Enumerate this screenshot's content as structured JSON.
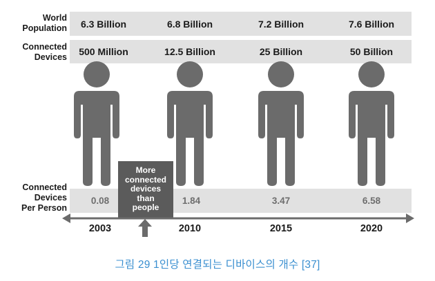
{
  "labels": {
    "world_population": [
      "World",
      "Population"
    ],
    "connected_devices": [
      "Connected",
      "Devices"
    ],
    "per_person": [
      "Connected",
      "Devices",
      "Per Person"
    ]
  },
  "columns": [
    {
      "year": "2003",
      "population": "6.3 Billion",
      "devices": "500 Million",
      "per_person": "0.08"
    },
    {
      "year": "2010",
      "population": "6.8 Billion",
      "devices": "12.5 Billion",
      "per_person": "1.84"
    },
    {
      "year": "2015",
      "population": "7.2 Billion",
      "devices": "25 Billion",
      "per_person": "3.47"
    },
    {
      "year": "2020",
      "population": "7.6 Billion",
      "devices": "50 Billion",
      "per_person": "6.58"
    }
  ],
  "callout": [
    "More",
    "connected",
    "devices",
    "than",
    "people"
  ],
  "caption": "그림 29   1인당 연결되는 디바이스의 개수 [37]",
  "colors": {
    "band": "#e1e1e1",
    "figure": "#6b6b6b",
    "callout_bg": "#5b5b5b",
    "caption": "#3a8fd0"
  },
  "icons": {
    "person": "person-icon",
    "axis": "double-arrow-axis",
    "pointer": "up-arrow-icon"
  }
}
